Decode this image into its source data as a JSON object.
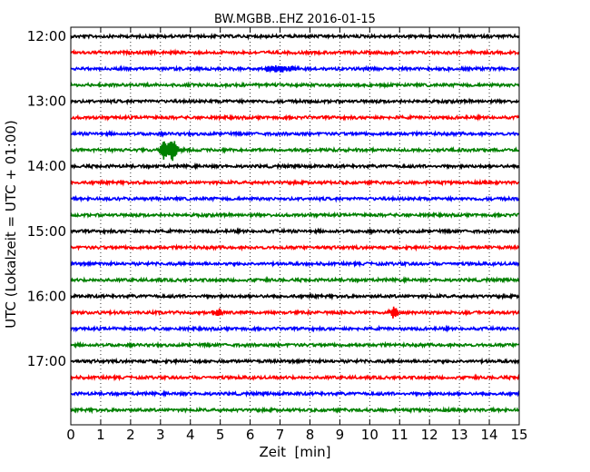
{
  "chart_data": {
    "type": "line",
    "title": "BW.MGBB..EHZ 2016-01-15",
    "xlabel": "Zeit  [min]",
    "ylabel": "UTC (Lokalzeit = UTC + 01:00)",
    "xlim": [
      0,
      15
    ],
    "x_ticks": [
      "0",
      "1",
      "2",
      "3",
      "4",
      "5",
      "6",
      "7",
      "8",
      "9",
      "10",
      "11",
      "12",
      "13",
      "14",
      "15"
    ],
    "y_tick_labels": [
      "12:00",
      "13:00",
      "14:00",
      "15:00",
      "16:00",
      "17:00"
    ],
    "grid": "vertical dotted",
    "trace_colors": [
      "#000000",
      "#ff0000",
      "#0000ff",
      "#008000"
    ],
    "traces": [
      {
        "start": "12:00",
        "color": "#000000",
        "events": []
      },
      {
        "start": "12:15",
        "color": "#ff0000",
        "events": []
      },
      {
        "start": "12:30",
        "color": "#0000ff",
        "events": [
          {
            "x": 7.0,
            "amp": 0.35,
            "dur": 0.6
          }
        ]
      },
      {
        "start": "12:45",
        "color": "#008000",
        "events": []
      },
      {
        "start": "13:00",
        "color": "#000000",
        "events": []
      },
      {
        "start": "13:15",
        "color": "#ff0000",
        "events": []
      },
      {
        "start": "13:30",
        "color": "#0000ff",
        "events": []
      },
      {
        "start": "13:45",
        "color": "#008000",
        "events": [
          {
            "x": 3.1,
            "amp": 1.0,
            "dur": 0.12
          },
          {
            "x": 3.4,
            "amp": 1.3,
            "dur": 0.18
          }
        ]
      },
      {
        "start": "14:00",
        "color": "#000000",
        "events": []
      },
      {
        "start": "14:15",
        "color": "#ff0000",
        "events": []
      },
      {
        "start": "14:30",
        "color": "#0000ff",
        "events": []
      },
      {
        "start": "14:45",
        "color": "#008000",
        "events": []
      },
      {
        "start": "15:00",
        "color": "#000000",
        "events": []
      },
      {
        "start": "15:15",
        "color": "#ff0000",
        "events": []
      },
      {
        "start": "15:30",
        "color": "#0000ff",
        "events": []
      },
      {
        "start": "15:45",
        "color": "#008000",
        "events": []
      },
      {
        "start": "16:00",
        "color": "#000000",
        "events": []
      },
      {
        "start": "16:15",
        "color": "#ff0000",
        "events": [
          {
            "x": 4.9,
            "amp": 0.45,
            "dur": 0.15
          },
          {
            "x": 10.8,
            "amp": 0.7,
            "dur": 0.12
          }
        ]
      },
      {
        "start": "16:30",
        "color": "#0000ff",
        "events": []
      },
      {
        "start": "16:45",
        "color": "#008000",
        "events": []
      },
      {
        "start": "17:00",
        "color": "#000000",
        "events": []
      },
      {
        "start": "17:15",
        "color": "#ff0000",
        "events": []
      },
      {
        "start": "17:30",
        "color": "#0000ff",
        "events": []
      },
      {
        "start": "17:45",
        "color": "#008000",
        "events": []
      }
    ]
  }
}
